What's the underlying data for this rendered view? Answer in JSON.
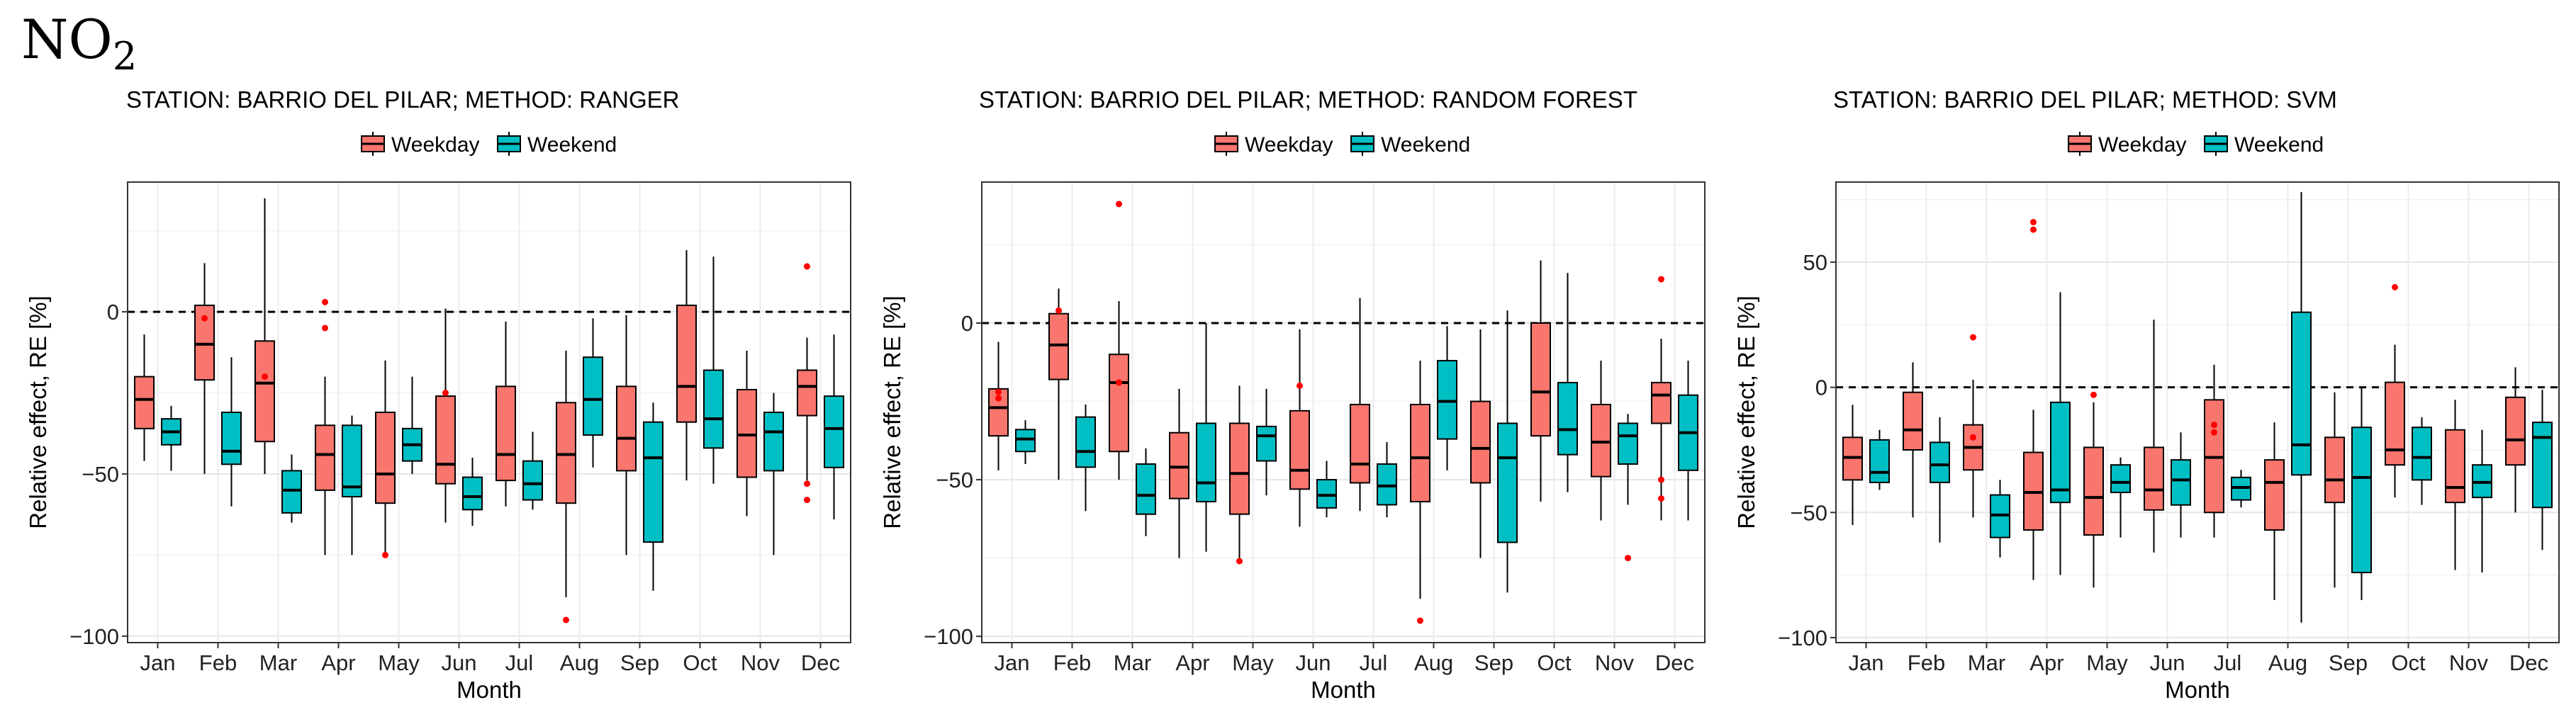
{
  "figure": {
    "title_main": "NO",
    "title_sub": "2"
  },
  "legend": {
    "items": [
      {
        "label": "Weekday",
        "color": "#F8766D"
      },
      {
        "label": "Weekend",
        "color": "#00BFC4"
      }
    ]
  },
  "chart_data": [
    {
      "type": "box",
      "title": "STATION: BARRIO DEL PILAR; METHOD: RANGER",
      "xlabel": "Month",
      "ylabel": "Relative effect, RE [%]",
      "ylim": [
        -102,
        40
      ],
      "yticks": [
        0,
        -50,
        -100
      ],
      "ytick_labels": [
        "0",
        "−50",
        "−100"
      ],
      "reference_line": 0,
      "categories": [
        "Jan",
        "Feb",
        "Mar",
        "Apr",
        "May",
        "Jun",
        "Jul",
        "Aug",
        "Sep",
        "Oct",
        "Nov",
        "Dec"
      ],
      "series": [
        {
          "name": "Weekday",
          "boxes": [
            {
              "min": -46,
              "q1": -36,
              "median": -27,
              "q3": -20,
              "max": -7,
              "outliers": []
            },
            {
              "min": -50,
              "q1": -21,
              "median": -10,
              "q3": 2,
              "max": 15,
              "outliers": [
                -2
              ]
            },
            {
              "min": -50,
              "q1": -40,
              "median": -22,
              "q3": -9,
              "max": 35,
              "outliers": [
                -20
              ]
            },
            {
              "min": -75,
              "q1": -55,
              "median": -44,
              "q3": -35,
              "max": -20,
              "outliers": [
                -5,
                3
              ]
            },
            {
              "min": -75,
              "q1": -59,
              "median": -50,
              "q3": -31,
              "max": -15,
              "outliers": [
                -75
              ]
            },
            {
              "min": -65,
              "q1": -53,
              "median": -47,
              "q3": -26,
              "max": 1,
              "outliers": [
                -25
              ]
            },
            {
              "min": -60,
              "q1": -52,
              "median": -44,
              "q3": -23,
              "max": -3,
              "outliers": []
            },
            {
              "min": -88,
              "q1": -59,
              "median": -44,
              "q3": -28,
              "max": -12,
              "outliers": [
                -95
              ]
            },
            {
              "min": -75,
              "q1": -49,
              "median": -39,
              "q3": -23,
              "max": -1,
              "outliers": []
            },
            {
              "min": -52,
              "q1": -34,
              "median": -23,
              "q3": 2,
              "max": 19,
              "outliers": []
            },
            {
              "min": -63,
              "q1": -51,
              "median": -38,
              "q3": -24,
              "max": -12,
              "outliers": []
            },
            {
              "min": -52,
              "q1": -32,
              "median": -23,
              "q3": -18,
              "max": -8,
              "outliers": [
                14,
                -53,
                -58
              ]
            }
          ]
        },
        {
          "name": "Weekend",
          "boxes": [
            {
              "min": -49,
              "q1": -41,
              "median": -37,
              "q3": -33,
              "max": -29,
              "outliers": []
            },
            {
              "min": -60,
              "q1": -47,
              "median": -43,
              "q3": -31,
              "max": -14,
              "outliers": []
            },
            {
              "min": -65,
              "q1": -62,
              "median": -55,
              "q3": -49,
              "max": -44,
              "outliers": []
            },
            {
              "min": -75,
              "q1": -57,
              "median": -54,
              "q3": -35,
              "max": -32,
              "outliers": []
            },
            {
              "min": -50,
              "q1": -46,
              "median": -41,
              "q3": -36,
              "max": -20,
              "outliers": []
            },
            {
              "min": -66,
              "q1": -61,
              "median": -57,
              "q3": -51,
              "max": -45,
              "outliers": []
            },
            {
              "min": -61,
              "q1": -58,
              "median": -53,
              "q3": -46,
              "max": -37,
              "outliers": []
            },
            {
              "min": -48,
              "q1": -38,
              "median": -27,
              "q3": -14,
              "max": -2,
              "outliers": []
            },
            {
              "min": -86,
              "q1": -71,
              "median": -45,
              "q3": -34,
              "max": -28,
              "outliers": []
            },
            {
              "min": -53,
              "q1": -42,
              "median": -33,
              "q3": -18,
              "max": 17,
              "outliers": []
            },
            {
              "min": -75,
              "q1": -49,
              "median": -37,
              "q3": -31,
              "max": -25,
              "outliers": []
            },
            {
              "min": -64,
              "q1": -48,
              "median": -36,
              "q3": -26,
              "max": -7,
              "outliers": []
            }
          ]
        }
      ]
    },
    {
      "type": "box",
      "title": "STATION: BARRIO DEL PILAR; METHOD: RANDOM FOREST",
      "xlabel": "Month",
      "ylabel": "Relative effect, RE [%]",
      "ylim": [
        -102,
        45
      ],
      "yticks": [
        0,
        -50,
        -100
      ],
      "ytick_labels": [
        "0",
        "−50",
        "−100"
      ],
      "reference_line": 0,
      "categories": [
        "Jan",
        "Feb",
        "Mar",
        "Apr",
        "May",
        "Jun",
        "Jul",
        "Aug",
        "Sep",
        "Oct",
        "Nov",
        "Dec"
      ],
      "series": [
        {
          "name": "Weekday",
          "boxes": [
            {
              "min": -47,
              "q1": -36,
              "median": -27,
              "q3": -21,
              "max": -6,
              "outliers": [
                -22,
                -24
              ]
            },
            {
              "min": -50,
              "q1": -18,
              "median": -7,
              "q3": 3,
              "max": 11,
              "outliers": [
                4
              ]
            },
            {
              "min": -50,
              "q1": -41,
              "median": -19,
              "q3": -10,
              "max": 7,
              "outliers": [
                -19,
                38
              ]
            },
            {
              "min": -75,
              "q1": -56,
              "median": -46,
              "q3": -35,
              "max": -21,
              "outliers": []
            },
            {
              "min": -75,
              "q1": -61,
              "median": -48,
              "q3": -32,
              "max": -20,
              "outliers": [
                -76
              ]
            },
            {
              "min": -65,
              "q1": -53,
              "median": -47,
              "q3": -28,
              "max": -2,
              "outliers": [
                -20
              ]
            },
            {
              "min": -60,
              "q1": -51,
              "median": -45,
              "q3": -26,
              "max": 8,
              "outliers": []
            },
            {
              "min": -88,
              "q1": -57,
              "median": -43,
              "q3": -26,
              "max": -12,
              "outliers": [
                -95
              ]
            },
            {
              "min": -75,
              "q1": -51,
              "median": -40,
              "q3": -25,
              "max": -2,
              "outliers": []
            },
            {
              "min": -57,
              "q1": -36,
              "median": -22,
              "q3": 0,
              "max": 20,
              "outliers": []
            },
            {
              "min": -63,
              "q1": -49,
              "median": -38,
              "q3": -26,
              "max": -12,
              "outliers": []
            },
            {
              "min": -63,
              "q1": -32,
              "median": -23,
              "q3": -19,
              "max": -5,
              "outliers": [
                14,
                -50,
                -56
              ]
            }
          ]
        },
        {
          "name": "Weekend",
          "boxes": [
            {
              "min": -45,
              "q1": -41,
              "median": -37,
              "q3": -34,
              "max": -31,
              "outliers": []
            },
            {
              "min": -60,
              "q1": -46,
              "median": -41,
              "q3": -30,
              "max": -26,
              "outliers": []
            },
            {
              "min": -68,
              "q1": -61,
              "median": -55,
              "q3": -45,
              "max": -40,
              "outliers": []
            },
            {
              "min": -73,
              "q1": -57,
              "median": -51,
              "q3": -32,
              "max": 0,
              "outliers": []
            },
            {
              "min": -55,
              "q1": -44,
              "median": -36,
              "q3": -33,
              "max": -21,
              "outliers": []
            },
            {
              "min": -62,
              "q1": -59,
              "median": -55,
              "q3": -50,
              "max": -44,
              "outliers": []
            },
            {
              "min": -62,
              "q1": -58,
              "median": -52,
              "q3": -45,
              "max": -38,
              "outliers": []
            },
            {
              "min": -47,
              "q1": -37,
              "median": -25,
              "q3": -12,
              "max": -1,
              "outliers": []
            },
            {
              "min": -86,
              "q1": -70,
              "median": -43,
              "q3": -32,
              "max": 4,
              "outliers": []
            },
            {
              "min": -54,
              "q1": -42,
              "median": -34,
              "q3": -19,
              "max": 16,
              "outliers": []
            },
            {
              "min": -58,
              "q1": -45,
              "median": -36,
              "q3": -32,
              "max": -29,
              "outliers": [
                -75
              ]
            },
            {
              "min": -63,
              "q1": -47,
              "median": -35,
              "q3": -23,
              "max": -12,
              "outliers": []
            }
          ]
        }
      ]
    },
    {
      "type": "box",
      "title": "STATION: BARRIO DEL PILAR; METHOD: SVM",
      "xlabel": "Month",
      "ylabel": "Relative effect, RE [%]",
      "ylim": [
        -102,
        82
      ],
      "yticks": [
        50,
        0,
        -50,
        -100
      ],
      "ytick_labels": [
        "50",
        "0",
        "−50",
        "−100"
      ],
      "reference_line": 0,
      "categories": [
        "Jan",
        "Feb",
        "Mar",
        "Apr",
        "May",
        "Jun",
        "Jul",
        "Aug",
        "Sep",
        "Oct",
        "Nov",
        "Dec"
      ],
      "series": [
        {
          "name": "Weekday",
          "boxes": [
            {
              "min": -55,
              "q1": -37,
              "median": -28,
              "q3": -20,
              "max": -7,
              "outliers": []
            },
            {
              "min": -52,
              "q1": -25,
              "median": -17,
              "q3": -2,
              "max": 10,
              "outliers": []
            },
            {
              "min": -52,
              "q1": -33,
              "median": -24,
              "q3": -15,
              "max": 3,
              "outliers": [
                20,
                -20
              ]
            },
            {
              "min": -77,
              "q1": -57,
              "median": -42,
              "q3": -26,
              "max": -9,
              "outliers": [
                66,
                63
              ]
            },
            {
              "min": -80,
              "q1": -59,
              "median": -44,
              "q3": -24,
              "max": -6,
              "outliers": [
                -3
              ]
            },
            {
              "min": -66,
              "q1": -49,
              "median": -41,
              "q3": -24,
              "max": 27,
              "outliers": []
            },
            {
              "min": -60,
              "q1": -50,
              "median": -28,
              "q3": -5,
              "max": 9,
              "outliers": [
                -15,
                -18
              ]
            },
            {
              "min": -85,
              "q1": -57,
              "median": -38,
              "q3": -29,
              "max": -14,
              "outliers": []
            },
            {
              "min": -80,
              "q1": -46,
              "median": -37,
              "q3": -20,
              "max": -2,
              "outliers": []
            },
            {
              "min": -44,
              "q1": -31,
              "median": -25,
              "q3": 2,
              "max": 17,
              "outliers": [
                40
              ]
            },
            {
              "min": -73,
              "q1": -46,
              "median": -40,
              "q3": -17,
              "max": -5,
              "outliers": []
            },
            {
              "min": -50,
              "q1": -31,
              "median": -21,
              "q3": -4,
              "max": 8,
              "outliers": []
            }
          ]
        },
        {
          "name": "Weekend",
          "boxes": [
            {
              "min": -41,
              "q1": -38,
              "median": -34,
              "q3": -21,
              "max": -17,
              "outliers": []
            },
            {
              "min": -62,
              "q1": -38,
              "median": -31,
              "q3": -22,
              "max": -12,
              "outliers": []
            },
            {
              "min": -68,
              "q1": -60,
              "median": -51,
              "q3": -43,
              "max": -37,
              "outliers": []
            },
            {
              "min": -75,
              "q1": -46,
              "median": -41,
              "q3": -6,
              "max": 38,
              "outliers": []
            },
            {
              "min": -60,
              "q1": -42,
              "median": -38,
              "q3": -31,
              "max": -28,
              "outliers": []
            },
            {
              "min": -60,
              "q1": -47,
              "median": -37,
              "q3": -29,
              "max": -18,
              "outliers": []
            },
            {
              "min": -48,
              "q1": -45,
              "median": -40,
              "q3": -36,
              "max": -33,
              "outliers": []
            },
            {
              "min": -94,
              "q1": -35,
              "median": -23,
              "q3": 30,
              "max": 78,
              "outliers": []
            },
            {
              "min": -85,
              "q1": -74,
              "median": -36,
              "q3": -16,
              "max": 0,
              "outliers": []
            },
            {
              "min": -47,
              "q1": -37,
              "median": -28,
              "q3": -16,
              "max": -12,
              "outliers": []
            },
            {
              "min": -74,
              "q1": -44,
              "median": -38,
              "q3": -31,
              "max": -17,
              "outliers": []
            },
            {
              "min": -65,
              "q1": -48,
              "median": -20,
              "q3": -14,
              "max": -1,
              "outliers": []
            }
          ]
        }
      ]
    }
  ]
}
